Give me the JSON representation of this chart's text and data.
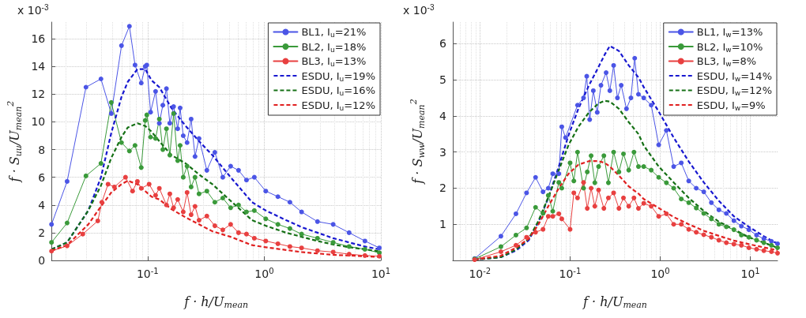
{
  "chart_data": [
    {
      "type": "line",
      "xlabel": "f · h/U$_{mean}$",
      "ylabel": "f · S$_{uu}$/U$_{mean}$$^{2}$",
      "annotations": [
        "x 10$^{-3}$"
      ],
      "log": "x",
      "grid": true,
      "legend": "top right",
      "xlim": [
        0.015,
        10
      ],
      "xticks": [
        {
          "value": 0.1,
          "label": "10$^{-1}$"
        },
        {
          "value": 1,
          "label": "10$^{0}$"
        },
        {
          "value": 10,
          "label": "10$^{1}$"
        }
      ],
      "ylim": [
        0,
        17.2
      ],
      "yticks": [
        0,
        2,
        4,
        6,
        8,
        10,
        12,
        14,
        16
      ],
      "series": [
        {
          "name": "BL1, I$_{u}$=21%",
          "color": "#4b55e6",
          "line_style": "solid",
          "marker": "circle",
          "x": [
            0.015,
            0.0204,
            0.0296,
            0.0398,
            0.0488,
            0.0597,
            0.0698,
            0.078,
            0.0882,
            0.0954,
            0.0984,
            0.106,
            0.117,
            0.126,
            0.135,
            0.145,
            0.155,
            0.167,
            0.181,
            0.19,
            0.202,
            0.218,
            0.236,
            0.255,
            0.276,
            0.322,
            0.377,
            0.441,
            0.515,
            0.602,
            0.704,
            0.822,
            1.03,
            1.31,
            1.66,
            2.09,
            2.86,
            3.9,
            5.34,
            7.3,
            9.7
          ],
          "values": [
            2.6,
            5.7,
            12.5,
            13.1,
            10.6,
            15.5,
            16.9,
            14.1,
            12.8,
            14.0,
            14.1,
            10.7,
            12.2,
            9.9,
            11.2,
            12.4,
            9.9,
            11.1,
            9.5,
            11.0,
            9.0,
            8.5,
            10.2,
            7.5,
            8.8,
            6.5,
            7.8,
            6.0,
            6.8,
            6.5,
            5.8,
            6.0,
            5.0,
            4.6,
            4.2,
            3.5,
            2.8,
            2.6,
            2.0,
            1.4,
            0.9
          ]
        },
        {
          "name": "BL2, I$_{u}$=18%",
          "color": "#3a9a3a",
          "line_style": "solid",
          "marker": "circle",
          "x": [
            0.015,
            0.0204,
            0.0296,
            0.0398,
            0.0488,
            0.0597,
            0.0698,
            0.078,
            0.0882,
            0.0954,
            0.0984,
            0.106,
            0.117,
            0.126,
            0.135,
            0.145,
            0.155,
            0.167,
            0.181,
            0.19,
            0.202,
            0.218,
            0.236,
            0.255,
            0.276,
            0.322,
            0.377,
            0.441,
            0.515,
            0.602,
            0.704,
            0.822,
            1.03,
            1.31,
            1.66,
            2.09,
            2.86,
            3.9,
            5.34,
            7.3,
            9.7
          ],
          "values": [
            1.3,
            2.7,
            6.1,
            7.0,
            11.4,
            8.5,
            7.9,
            8.3,
            6.7,
            10.1,
            10.5,
            8.9,
            8.8,
            10.2,
            8.0,
            9.5,
            7.6,
            10.6,
            7.2,
            8.3,
            6.0,
            6.8,
            5.3,
            6.0,
            4.8,
            5.0,
            4.2,
            4.5,
            3.8,
            4.0,
            3.5,
            3.6,
            3.0,
            2.6,
            2.3,
            1.9,
            1.6,
            1.3,
            1.0,
            0.8,
            0.55
          ]
        },
        {
          "name": "BL3, I$_{u}$=13%",
          "color": "#e84040",
          "line_style": "solid",
          "marker": "circle",
          "x": [
            0.015,
            0.0204,
            0.0278,
            0.0374,
            0.0405,
            0.0458,
            0.0519,
            0.0646,
            0.0743,
            0.0817,
            0.0882,
            0.103,
            0.117,
            0.126,
            0.145,
            0.155,
            0.167,
            0.181,
            0.202,
            0.218,
            0.236,
            0.255,
            0.276,
            0.322,
            0.377,
            0.441,
            0.515,
            0.602,
            0.704,
            0.822,
            1.03,
            1.31,
            1.66,
            2.09,
            2.86,
            3.9,
            5.34,
            7.3,
            9.7
          ],
          "values": [
            0.67,
            1.05,
            1.9,
            2.85,
            4.2,
            5.5,
            5.3,
            6.0,
            5.0,
            5.7,
            5.2,
            5.5,
            4.7,
            5.2,
            4.0,
            4.8,
            3.8,
            4.4,
            3.5,
            4.9,
            3.3,
            3.9,
            2.9,
            3.2,
            2.5,
            2.2,
            2.6,
            2.0,
            1.9,
            1.6,
            1.4,
            1.2,
            1.0,
            0.9,
            0.7,
            0.6,
            0.45,
            0.35,
            0.3
          ]
        },
        {
          "name": "ESDU, I$_{u}$=19%",
          "color": "#1818d0",
          "line_style": "dashed",
          "marker": "none",
          "x": [
            0.015,
            0.0204,
            0.031,
            0.0398,
            0.0488,
            0.0597,
            0.0677,
            0.0817,
            0.0954,
            0.108,
            0.126,
            0.16,
            0.212,
            0.276,
            0.359,
            0.515,
            0.786,
            1.03,
            1.54,
            2.09,
            2.86,
            3.9,
            5.34,
            7.3,
            9.7
          ],
          "values": [
            0.8,
            1.3,
            3.6,
            6.0,
            9.2,
            11.8,
            12.9,
            13.8,
            13.8,
            13.0,
            12.5,
            11.0,
            9.7,
            8.6,
            7.6,
            6.0,
            4.2,
            3.6,
            2.9,
            2.4,
            2.0,
            1.6,
            1.3,
            1.0,
            0.8
          ]
        },
        {
          "name": "ESDU, I$_{u}$=16%",
          "color": "#157015",
          "line_style": "dashed",
          "marker": "none",
          "x": [
            0.015,
            0.0204,
            0.031,
            0.0398,
            0.0488,
            0.0597,
            0.0677,
            0.0817,
            0.0954,
            0.108,
            0.126,
            0.16,
            0.212,
            0.276,
            0.359,
            0.515,
            0.786,
            1.03,
            1.54,
            2.09,
            2.86,
            3.9,
            5.34,
            7.3,
            9.7
          ],
          "values": [
            0.8,
            1.3,
            3.6,
            5.4,
            7.4,
            8.9,
            9.6,
            9.9,
            9.7,
            9.3,
            8.6,
            7.6,
            7.0,
            6.2,
            5.5,
            4.3,
            2.9,
            2.5,
            2.0,
            1.7,
            1.4,
            1.15,
            0.95,
            0.8,
            0.65
          ]
        },
        {
          "name": "ESDU, I$_{u}$=12%",
          "color": "#e02020",
          "line_style": "dashed",
          "marker": "none",
          "x": [
            0.015,
            0.0204,
            0.031,
            0.0398,
            0.0488,
            0.0597,
            0.0677,
            0.0817,
            0.0954,
            0.108,
            0.126,
            0.16,
            0.212,
            0.276,
            0.359,
            0.515,
            0.786,
            1.03,
            1.54,
            2.09,
            2.86,
            3.9,
            5.34,
            7.3,
            9.7
          ],
          "values": [
            0.7,
            1.1,
            2.6,
            3.9,
            4.9,
            5.5,
            5.75,
            5.5,
            5.0,
            4.6,
            4.4,
            3.7,
            3.1,
            2.6,
            2.1,
            1.7,
            1.1,
            0.95,
            0.75,
            0.6,
            0.5,
            0.4,
            0.35,
            0.3,
            0.25
          ]
        }
      ]
    },
    {
      "type": "line",
      "xlabel": "f · h/U$_{mean}$",
      "ylabel": "f · S$_{ww}$/U$_{mean}$$^{2}$",
      "annotations": [
        "x 10$^{-3}$"
      ],
      "log": "x",
      "grid": true,
      "legend": "top right",
      "xlim": [
        0.005,
        20
      ],
      "xticks": [
        {
          "value": 0.01,
          "label": "10$^{-2}$"
        },
        {
          "value": 0.1,
          "label": "10$^{-1}$"
        },
        {
          "value": 1,
          "label": "10$^{0}$"
        },
        {
          "value": 10,
          "label": "10$^{1}$"
        }
      ],
      "ylim": [
        0,
        6.6
      ],
      "yticks": [
        1,
        2,
        3,
        4,
        5,
        6
      ],
      "series": [
        {
          "name": "BL1, I$_{w}$=13%",
          "color": "#4b55e6",
          "line_style": "solid",
          "marker": "circle",
          "x": [
            0.00874,
            0.0171,
            0.0251,
            0.0329,
            0.0414,
            0.0501,
            0.0573,
            0.0643,
            0.075,
            0.0809,
            0.0891,
            0.121,
            0.141,
            0.153,
            0.165,
            0.181,
            0.2,
            0.22,
            0.251,
            0.276,
            0.304,
            0.335,
            0.369,
            0.422,
            0.473,
            0.521,
            0.573,
            0.656,
            0.794,
            0.962,
            1.17,
            1.41,
            1.71,
            2.07,
            2.51,
            3.04,
            3.69,
            4.47,
            5.41,
            6.56,
            7.94,
            9.62,
            11.7,
            14.1,
            17.1,
            20
          ],
          "values": [
            0.05,
            0.67,
            1.29,
            1.87,
            2.3,
            1.9,
            2.0,
            2.4,
            2.4,
            3.7,
            3.4,
            4.3,
            4.5,
            5.1,
            3.9,
            4.7,
            4.1,
            4.85,
            5.2,
            4.7,
            5.4,
            4.5,
            4.85,
            4.2,
            4.5,
            5.6,
            4.6,
            4.5,
            4.3,
            3.2,
            3.6,
            2.6,
            2.7,
            2.2,
            2.0,
            1.9,
            1.6,
            1.4,
            1.3,
            1.1,
            0.95,
            0.85,
            0.7,
            0.6,
            0.53,
            0.46
          ]
        },
        {
          "name": "BL2, I$_{w}$=10%",
          "color": "#3a9a3a",
          "line_style": "solid",
          "marker": "circle",
          "x": [
            0.00874,
            0.0171,
            0.0251,
            0.0329,
            0.0414,
            0.0501,
            0.0573,
            0.0643,
            0.075,
            0.0809,
            0.1,
            0.11,
            0.121,
            0.141,
            0.155,
            0.171,
            0.188,
            0.207,
            0.237,
            0.266,
            0.304,
            0.348,
            0.391,
            0.447,
            0.511,
            0.573,
            0.656,
            0.794,
            0.962,
            1.17,
            1.41,
            1.71,
            2.07,
            2.51,
            3.04,
            3.69,
            4.47,
            5.41,
            6.56,
            7.94,
            9.62,
            11.7,
            14.1,
            17.1,
            20
          ],
          "values": [
            0.04,
            0.38,
            0.7,
            0.9,
            1.47,
            1.3,
            1.8,
            1.36,
            2.16,
            2.0,
            2.7,
            2.2,
            3.0,
            2.0,
            2.45,
            2.9,
            2.15,
            2.6,
            2.9,
            2.15,
            3.0,
            2.45,
            2.95,
            2.5,
            3.0,
            2.6,
            2.6,
            2.5,
            2.3,
            2.15,
            2.0,
            1.7,
            1.6,
            1.45,
            1.3,
            1.15,
            1.0,
            0.93,
            0.85,
            0.7,
            0.64,
            0.56,
            0.49,
            0.42,
            0.35
          ]
        },
        {
          "name": "BL3, I$_{w}$=8%",
          "color": "#e84040",
          "line_style": "solid",
          "marker": "circle",
          "x": [
            0.00874,
            0.0171,
            0.0251,
            0.0329,
            0.0414,
            0.0501,
            0.0573,
            0.0643,
            0.075,
            0.0809,
            0.1,
            0.11,
            0.121,
            0.141,
            0.155,
            0.171,
            0.188,
            0.207,
            0.237,
            0.266,
            0.304,
            0.348,
            0.391,
            0.447,
            0.511,
            0.573,
            0.656,
            0.794,
            0.962,
            1.17,
            1.41,
            1.71,
            2.07,
            2.51,
            3.04,
            3.69,
            4.47,
            5.41,
            6.56,
            7.94,
            9.62,
            11.7,
            14.1,
            17.1,
            20
          ],
          "values": [
            0.02,
            0.24,
            0.42,
            0.64,
            0.78,
            0.86,
            1.22,
            1.22,
            1.29,
            1.15,
            0.86,
            1.87,
            1.73,
            2.16,
            1.44,
            2.0,
            1.5,
            1.95,
            1.44,
            1.73,
            1.87,
            1.44,
            1.73,
            1.5,
            1.73,
            1.44,
            1.58,
            1.5,
            1.22,
            1.29,
            1.0,
            1.0,
            0.86,
            0.78,
            0.71,
            0.64,
            0.56,
            0.49,
            0.45,
            0.42,
            0.35,
            0.31,
            0.27,
            0.24,
            0.2
          ]
        },
        {
          "name": "ESDU, I$_{w}$=14%",
          "color": "#1818d0",
          "line_style": "dashed",
          "marker": "none",
          "x": [
            0.00874,
            0.0171,
            0.0251,
            0.0348,
            0.0447,
            0.0573,
            0.075,
            0.0962,
            0.1236,
            0.162,
            0.207,
            0.242,
            0.276,
            0.348,
            0.447,
            0.573,
            0.656,
            0.962,
            1.41,
            2.07,
            3.04,
            4.47,
            6.56,
            9.62,
            14.1,
            20
          ],
          "values": [
            0.02,
            0.09,
            0.27,
            0.56,
            1.07,
            1.73,
            2.6,
            3.47,
            4.2,
            4.85,
            5.36,
            5.7,
            5.94,
            5.8,
            5.4,
            5.07,
            4.8,
            4.12,
            3.4,
            2.74,
            2.16,
            1.65,
            1.22,
            0.93,
            0.67,
            0.46
          ]
        },
        {
          "name": "ESDU, I$_{w}$=12%",
          "color": "#157015",
          "line_style": "dashed",
          "marker": "none",
          "x": [
            0.00874,
            0.0171,
            0.0251,
            0.0348,
            0.0447,
            0.0573,
            0.075,
            0.0962,
            0.1236,
            0.162,
            0.207,
            0.242,
            0.276,
            0.348,
            0.447,
            0.573,
            0.656,
            0.962,
            1.41,
            2.07,
            3.04,
            4.47,
            6.56,
            9.62,
            14.1,
            20
          ],
          "values": [
            0.02,
            0.09,
            0.3,
            0.6,
            1.1,
            1.75,
            2.5,
            3.2,
            3.7,
            4.1,
            4.35,
            4.42,
            4.4,
            4.2,
            3.83,
            3.5,
            3.18,
            2.6,
            2.16,
            1.73,
            1.37,
            1.07,
            0.86,
            0.64,
            0.49,
            0.35
          ]
        },
        {
          "name": "ESDU, I$_{w}$=9%",
          "color": "#e02020",
          "line_style": "dashed",
          "marker": "none",
          "x": [
            0.00874,
            0.0171,
            0.0251,
            0.0348,
            0.0447,
            0.0573,
            0.075,
            0.0962,
            0.1236,
            0.162,
            0.207,
            0.242,
            0.276,
            0.348,
            0.447,
            0.573,
            0.656,
            0.962,
            1.41,
            2.07,
            3.04,
            4.47,
            6.56,
            9.62,
            14.1,
            20
          ],
          "values": [
            0.02,
            0.13,
            0.35,
            0.6,
            1.0,
            1.5,
            2.0,
            2.4,
            2.65,
            2.75,
            2.75,
            2.7,
            2.6,
            2.35,
            2.05,
            1.85,
            1.7,
            1.45,
            1.2,
            1.0,
            0.82,
            0.68,
            0.55,
            0.45,
            0.36,
            0.28
          ]
        }
      ]
    }
  ]
}
